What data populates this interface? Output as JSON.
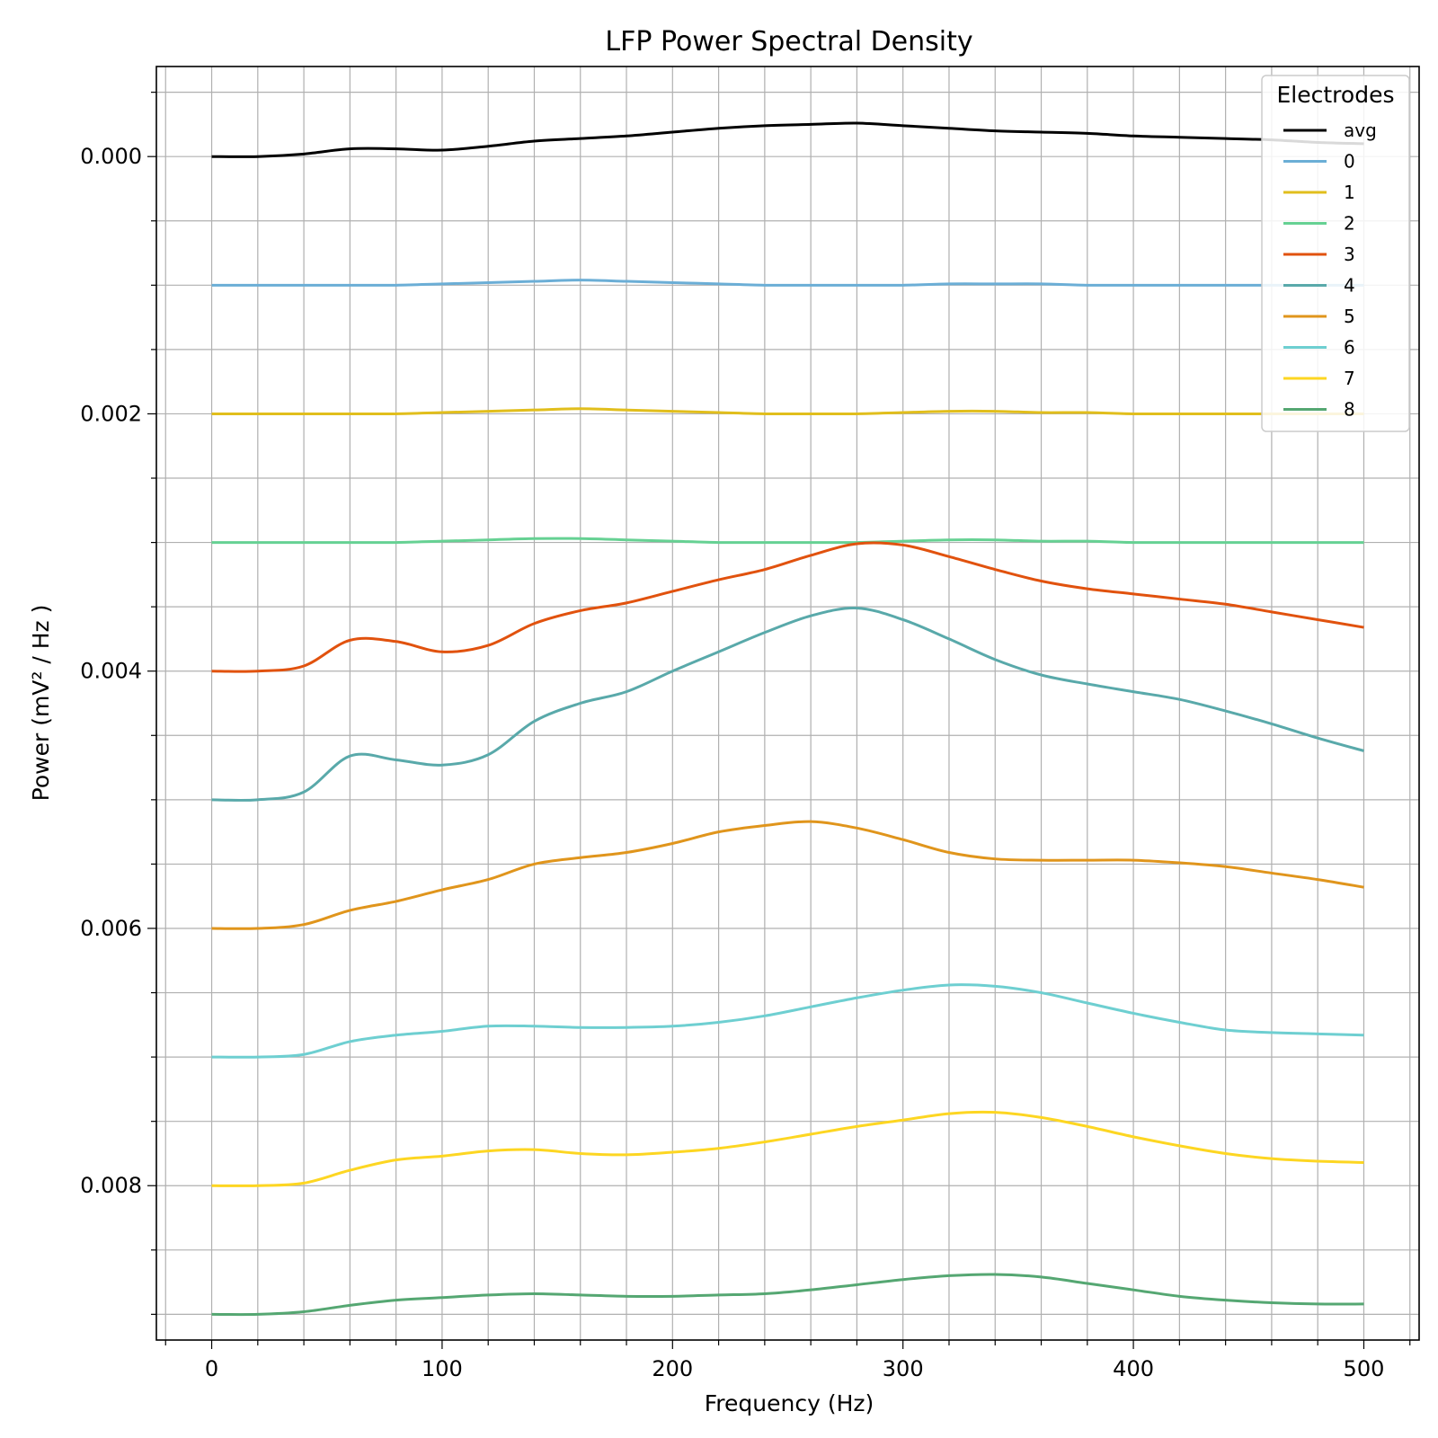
{
  "chart_data": {
    "type": "line",
    "title": "LFP Power Spectral Density",
    "xlabel": "Frequency (Hz)",
    "ylabel": "Power (mV² / Hz )",
    "xlim": [
      -24,
      524
    ],
    "ylim": [
      0.0092,
      -0.0007
    ],
    "y_inverted": true,
    "grid": true,
    "x_ticks": [
      0,
      100,
      200,
      300,
      400,
      500
    ],
    "x_tick_labels": [
      "0",
      "100",
      "200",
      "300",
      "400",
      "500"
    ],
    "y_ticks": [
      0.0,
      0.002,
      0.004,
      0.006,
      0.008
    ],
    "y_tick_labels": [
      "0.000",
      "0.002",
      "0.004",
      "0.006",
      "0.008"
    ],
    "x_minor_step": 20,
    "y_minor_step": 0.0005,
    "legend": {
      "title": "Electrodes",
      "position": "top-right"
    },
    "x": [
      0,
      20,
      40,
      60,
      80,
      100,
      120,
      140,
      160,
      180,
      200,
      220,
      240,
      260,
      280,
      300,
      320,
      340,
      360,
      380,
      400,
      420,
      440,
      460,
      480,
      500
    ],
    "series": [
      {
        "name": "avg",
        "color": "#000000",
        "values": [
          0.0,
          0.0,
          -2e-05,
          -6e-05,
          -6e-05,
          -5e-05,
          -8e-05,
          -0.00012,
          -0.00014,
          -0.00016,
          -0.00019,
          -0.00022,
          -0.00024,
          -0.00025,
          -0.00026,
          -0.00024,
          -0.00022,
          -0.0002,
          -0.00019,
          -0.00018,
          -0.00016,
          -0.00015,
          -0.00014,
          -0.00013,
          -0.00011,
          -0.0001
        ]
      },
      {
        "name": "0",
        "color": "#6baed6",
        "values": [
          0.001,
          0.001,
          0.001,
          0.001,
          0.001,
          0.00099,
          0.00098,
          0.00097,
          0.00096,
          0.00097,
          0.00098,
          0.00099,
          0.001,
          0.001,
          0.001,
          0.001,
          0.00099,
          0.00099,
          0.00099,
          0.001,
          0.001,
          0.001,
          0.001,
          0.001,
          0.001,
          0.001
        ]
      },
      {
        "name": "1",
        "color": "#e1be1c",
        "values": [
          0.002,
          0.002,
          0.002,
          0.002,
          0.002,
          0.00199,
          0.00198,
          0.00197,
          0.00196,
          0.00197,
          0.00198,
          0.00199,
          0.002,
          0.002,
          0.002,
          0.00199,
          0.00198,
          0.00198,
          0.00199,
          0.00199,
          0.002,
          0.002,
          0.002,
          0.002,
          0.002,
          0.002
        ]
      },
      {
        "name": "2",
        "color": "#66d193",
        "values": [
          0.003,
          0.003,
          0.003,
          0.003,
          0.003,
          0.00299,
          0.00298,
          0.00297,
          0.00297,
          0.00298,
          0.00299,
          0.003,
          0.003,
          0.003,
          0.003,
          0.00299,
          0.00298,
          0.00298,
          0.00299,
          0.00299,
          0.003,
          0.003,
          0.003,
          0.003,
          0.003,
          0.003
        ]
      },
      {
        "name": "3",
        "color": "#e1520e",
        "values": [
          0.004,
          0.004,
          0.00396,
          0.00376,
          0.00377,
          0.00385,
          0.0038,
          0.00363,
          0.00353,
          0.00347,
          0.00338,
          0.00329,
          0.00321,
          0.0031,
          0.00301,
          0.00302,
          0.00311,
          0.00321,
          0.0033,
          0.00336,
          0.0034,
          0.00344,
          0.00348,
          0.00354,
          0.0036,
          0.00366
        ]
      },
      {
        "name": "4",
        "color": "#59a9aa",
        "values": [
          0.005,
          0.005,
          0.00494,
          0.00466,
          0.00469,
          0.00473,
          0.00465,
          0.00439,
          0.00425,
          0.00416,
          0.004,
          0.00385,
          0.0037,
          0.00357,
          0.00351,
          0.0036,
          0.00375,
          0.00391,
          0.00403,
          0.0041,
          0.00416,
          0.00422,
          0.00431,
          0.00441,
          0.00452,
          0.00462
        ]
      },
      {
        "name": "5",
        "color": "#e0951c",
        "values": [
          0.006,
          0.006,
          0.00597,
          0.00586,
          0.00579,
          0.0057,
          0.00562,
          0.0055,
          0.00545,
          0.00541,
          0.00534,
          0.00525,
          0.0052,
          0.00517,
          0.00522,
          0.00531,
          0.00541,
          0.00546,
          0.00547,
          0.00547,
          0.00547,
          0.00549,
          0.00552,
          0.00557,
          0.00562,
          0.00568
        ]
      },
      {
        "name": "6",
        "color": "#6ecfd1",
        "values": [
          0.007,
          0.007,
          0.00698,
          0.00688,
          0.00683,
          0.0068,
          0.00676,
          0.00676,
          0.00677,
          0.00677,
          0.00676,
          0.00673,
          0.00668,
          0.00661,
          0.00654,
          0.00648,
          0.00644,
          0.00645,
          0.0065,
          0.00658,
          0.00666,
          0.00673,
          0.00679,
          0.00681,
          0.00682,
          0.00683
        ]
      },
      {
        "name": "7",
        "color": "#fdd622",
        "values": [
          0.008,
          0.008,
          0.00798,
          0.00788,
          0.0078,
          0.00777,
          0.00773,
          0.00772,
          0.00775,
          0.00776,
          0.00774,
          0.00771,
          0.00766,
          0.0076,
          0.00754,
          0.00749,
          0.00744,
          0.00743,
          0.00747,
          0.00754,
          0.00762,
          0.00769,
          0.00775,
          0.00779,
          0.00781,
          0.00782
        ]
      },
      {
        "name": "8",
        "color": "#55a772",
        "values": [
          0.009,
          0.009,
          0.00898,
          0.00893,
          0.00889,
          0.00887,
          0.00885,
          0.00884,
          0.00885,
          0.00886,
          0.00886,
          0.00885,
          0.00884,
          0.00881,
          0.00877,
          0.00873,
          0.0087,
          0.00869,
          0.00871,
          0.00876,
          0.00881,
          0.00886,
          0.00889,
          0.00891,
          0.00892,
          0.00892
        ]
      }
    ]
  }
}
